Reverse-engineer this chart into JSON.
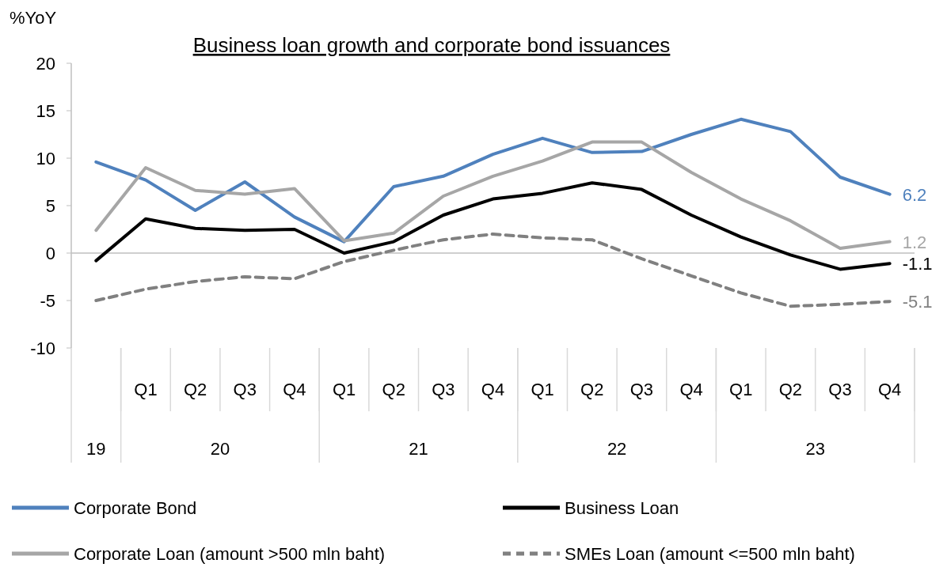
{
  "chart_data": {
    "type": "line",
    "title": "Business loan growth and corporate bond issuances",
    "ylabel": "%YoY",
    "categories": [
      null,
      "Q1",
      "Q2",
      "Q3",
      "Q4",
      "Q1",
      "Q2",
      "Q3",
      "Q4",
      "Q1",
      "Q2",
      "Q3",
      "Q4",
      "Q1",
      "Q2",
      "Q3",
      "Q4"
    ],
    "annotations": [
      "19",
      "20",
      "21",
      "22",
      "23"
    ],
    "series": [
      {
        "name": "Corporate Bond",
        "color": "#4f81bd",
        "line_style": "solid",
        "values": [
          9.6,
          7.7,
          4.5,
          7.5,
          3.8,
          1.2,
          7.0,
          8.1,
          10.4,
          12.1,
          10.6,
          10.7,
          12.5,
          14.1,
          12.8,
          8.0,
          6.2
        ],
        "value_labels": [
          null,
          null,
          null,
          null,
          null,
          null,
          null,
          null,
          null,
          null,
          null,
          null,
          null,
          null,
          null,
          null,
          "6.2"
        ]
      },
      {
        "name": "Business Loan",
        "color": "#000000",
        "line_style": "solid",
        "values": [
          -0.8,
          3.6,
          2.6,
          2.4,
          2.5,
          0.0,
          1.2,
          4.0,
          5.7,
          6.3,
          7.4,
          6.7,
          4.0,
          1.7,
          -0.2,
          -1.7,
          -1.1
        ],
        "value_labels": [
          null,
          null,
          null,
          null,
          null,
          null,
          null,
          null,
          null,
          null,
          null,
          null,
          null,
          null,
          null,
          null,
          "-1.1"
        ]
      },
      {
        "name": "Corporate Loan (amount >500 mln baht)",
        "color": "#a6a6a6",
        "line_style": "solid",
        "values": [
          2.4,
          9.0,
          6.6,
          6.2,
          6.8,
          1.3,
          2.1,
          6.0,
          8.1,
          9.7,
          11.7,
          11.7,
          8.5,
          5.7,
          3.4,
          0.5,
          1.2
        ],
        "value_labels": [
          null,
          null,
          null,
          null,
          null,
          null,
          null,
          null,
          null,
          null,
          null,
          null,
          null,
          null,
          null,
          null,
          "1.2"
        ]
      },
      {
        "name": "SMEs Loan (amount <=500 mln baht)",
        "color": "#808080",
        "line_style": "dashed",
        "values": [
          -5.0,
          -3.8,
          -3.0,
          -2.5,
          -2.7,
          -0.9,
          0.3,
          1.4,
          2.0,
          1.6,
          1.4,
          -0.6,
          -2.4,
          -4.2,
          -5.6,
          -5.4,
          -5.1
        ],
        "value_labels": [
          null,
          null,
          null,
          null,
          null,
          null,
          null,
          null,
          null,
          null,
          null,
          null,
          null,
          null,
          null,
          null,
          "-5.1"
        ]
      }
    ],
    "ylim": [
      -10,
      20
    ],
    "yticks": [
      -10,
      -5,
      0,
      5,
      10,
      15,
      20
    ],
    "legend": "bottom",
    "marker": "none"
  }
}
